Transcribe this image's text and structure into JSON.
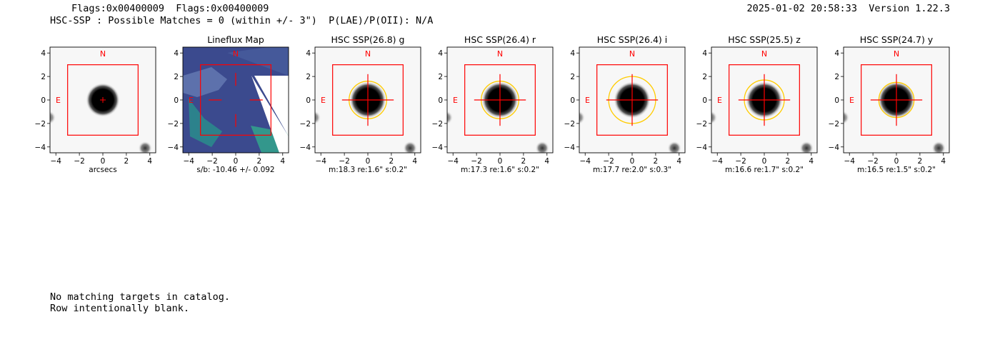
{
  "header": {
    "flags_line": "Flags:0x00400009  Flags:0x00400009",
    "matches_line": "HSC-SSP : Possible Matches = 0 (within +/- 3\")  P(LAE)/P(OII): N/A",
    "timestamp_version": "2025-01-02 20:58:33  Version 1.22.3"
  },
  "footer": {
    "line1": "No matching targets in catalog.",
    "line2": "Row intentionally blank."
  },
  "colors": {
    "box": "#ff0000",
    "ellipse": "#ffcc00",
    "lineflux_bg": "#3b4a8e",
    "lineflux_teal": "#2a8c8c"
  },
  "chart_data": [
    {
      "type": "heatmap",
      "title": "",
      "xlabel": "arcsecs",
      "compass": [
        "N",
        "E"
      ],
      "xlim": [
        -4.5,
        4.5
      ],
      "ylim": [
        -4.5,
        4.5
      ],
      "xticks": [
        -4,
        -2,
        0,
        2,
        4
      ],
      "yticks": [
        4,
        2,
        0,
        -2,
        -4
      ],
      "xticklabels": [
        "−4",
        "−2",
        "0",
        "2",
        "4"
      ],
      "yticklabels": [
        "4",
        "2",
        "0",
        "−2",
        "−4"
      ],
      "aperture_box": [
        -3,
        3
      ],
      "source": [
        0,
        0
      ],
      "ellipse_radius": 0
    },
    {
      "type": "heatmap",
      "title": "Lineflux Map",
      "xlabel": "s/b: -10.46 +/- 0.092",
      "compass": [
        "N",
        "E"
      ],
      "xlim": [
        -4.5,
        4.5
      ],
      "ylim": [
        -4.5,
        4.5
      ],
      "xticks": [
        -4,
        -2,
        0,
        2,
        4
      ],
      "yticks": [
        4,
        2,
        0,
        -2,
        -4
      ],
      "xticklabels": [
        "−4",
        "−2",
        "0",
        "2",
        "4"
      ],
      "yticklabels": [
        "4",
        "2",
        "0",
        "−2",
        "−4"
      ],
      "aperture_box": [
        -3,
        3
      ],
      "source": [
        0,
        0
      ],
      "ellipse_radius": 0
    },
    {
      "type": "heatmap",
      "title": "HSC SSP(26.8) g",
      "xlabel": "m:18.3  re:1.6\"  s:0.2\"",
      "compass": [
        "N",
        "E"
      ],
      "xlim": [
        -4.5,
        4.5
      ],
      "ylim": [
        -4.5,
        4.5
      ],
      "xticks": [
        -4,
        -2,
        0,
        2,
        4
      ],
      "yticks": [
        4,
        2,
        0,
        -2,
        -4
      ],
      "xticklabels": [
        "−4",
        "−2",
        "0",
        "2",
        "4"
      ],
      "yticklabels": [
        "4",
        "2",
        "0",
        "−2",
        "−4"
      ],
      "aperture_box": [
        -3,
        3
      ],
      "source": [
        0,
        0
      ],
      "ellipse_radius": 1.6
    },
    {
      "type": "heatmap",
      "title": "HSC SSP(26.4) r",
      "xlabel": "m:17.3  re:1.6\"  s:0.2\"",
      "compass": [
        "N",
        "E"
      ],
      "xlim": [
        -4.5,
        4.5
      ],
      "ylim": [
        -4.5,
        4.5
      ],
      "xticks": [
        -4,
        -2,
        0,
        2,
        4
      ],
      "yticks": [
        4,
        2,
        0,
        -2,
        -4
      ],
      "xticklabels": [
        "−4",
        "−2",
        "0",
        "2",
        "4"
      ],
      "yticklabels": [
        "4",
        "2",
        "0",
        "−2",
        "−4"
      ],
      "aperture_box": [
        -3,
        3
      ],
      "source": [
        0,
        0
      ],
      "ellipse_radius": 1.6
    },
    {
      "type": "heatmap",
      "title": "HSC SSP(26.4) i",
      "xlabel": "m:17.7  re:2.0\"  s:0.3\"",
      "compass": [
        "N",
        "E"
      ],
      "xlim": [
        -4.5,
        4.5
      ],
      "ylim": [
        -4.5,
        4.5
      ],
      "xticks": [
        -4,
        -2,
        0,
        2,
        4
      ],
      "yticks": [
        4,
        2,
        0,
        -2,
        -4
      ],
      "xticklabels": [
        "−4",
        "−2",
        "0",
        "2",
        "4"
      ],
      "yticklabels": [
        "4",
        "2",
        "0",
        "−2",
        "−4"
      ],
      "aperture_box": [
        -3,
        3
      ],
      "source": [
        0,
        0
      ],
      "ellipse_radius": 2.0
    },
    {
      "type": "heatmap",
      "title": "HSC SSP(25.5) z",
      "xlabel": "m:16.6  re:1.7\"  s:0.2\"",
      "compass": [
        "N",
        "E"
      ],
      "xlim": [
        -4.5,
        4.5
      ],
      "ylim": [
        -4.5,
        4.5
      ],
      "xticks": [
        -4,
        -2,
        0,
        2,
        4
      ],
      "yticks": [
        4,
        2,
        0,
        -2,
        -4
      ],
      "xticklabels": [
        "−4",
        "−2",
        "0",
        "2",
        "4"
      ],
      "yticklabels": [
        "4",
        "2",
        "0",
        "−2",
        "−4"
      ],
      "aperture_box": [
        -3,
        3
      ],
      "source": [
        0,
        0
      ],
      "ellipse_radius": 1.7
    },
    {
      "type": "heatmap",
      "title": "HSC SSP(24.7) y",
      "xlabel": "m:16.5  re:1.5\"  s:0.2\"",
      "compass": [
        "N",
        "E"
      ],
      "xlim": [
        -4.5,
        4.5
      ],
      "ylim": [
        -4.5,
        4.5
      ],
      "xticks": [
        -4,
        -2,
        0,
        2,
        4
      ],
      "yticks": [
        4,
        2,
        0,
        -2,
        -4
      ],
      "xticklabels": [
        "−4",
        "−2",
        "0",
        "2",
        "4"
      ],
      "yticklabels": [
        "4",
        "2",
        "0",
        "−2",
        "−4"
      ],
      "aperture_box": [
        -3,
        3
      ],
      "source": [
        0,
        0
      ],
      "ellipse_radius": 1.5
    }
  ]
}
